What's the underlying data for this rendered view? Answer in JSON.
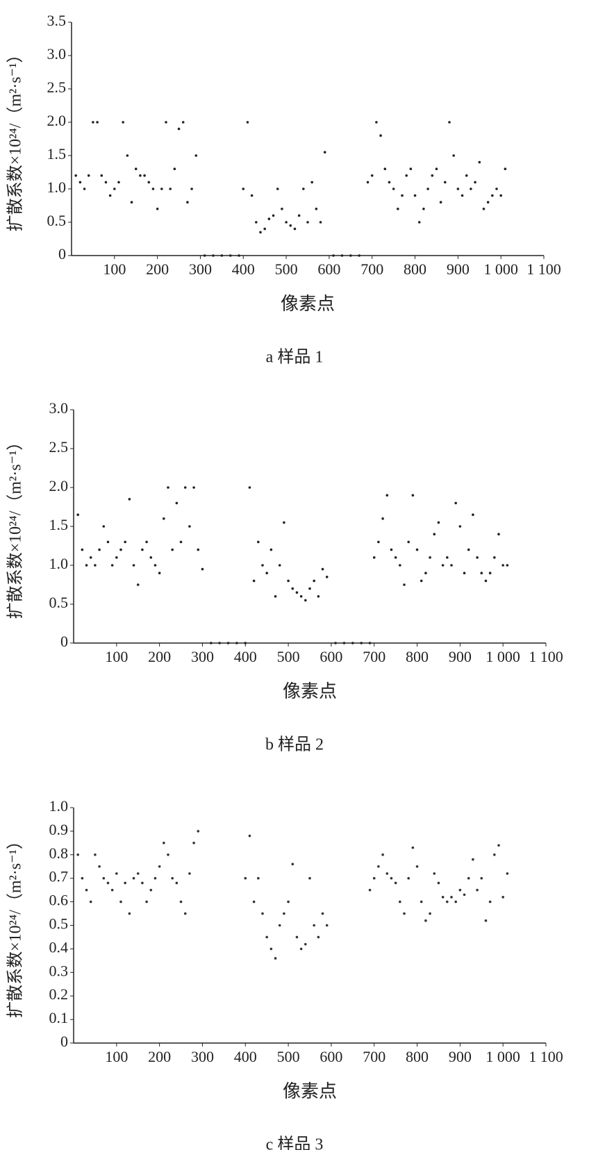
{
  "chart_data": [
    {
      "type": "scatter",
      "caption": "a 样品 1",
      "x_label": "像素点",
      "y_label": "扩散系数×10²⁴/（m²·s⁻¹）",
      "color": "#222222",
      "xlim": [
        0,
        1100
      ],
      "xticks": [
        100,
        200,
        300,
        400,
        500,
        600,
        700,
        800,
        900,
        {
          "value": 1000,
          "label": "1 000"
        },
        {
          "value": 1100,
          "label": "1 100"
        }
      ],
      "ylim": [
        0,
        3.5
      ],
      "yticks": [
        0,
        0.5,
        {
          "value": 1,
          "label": "1.0"
        },
        1.5,
        {
          "value": 2,
          "label": "2.0"
        },
        2.5,
        {
          "value": 3,
          "label": "3.0"
        },
        3.5
      ],
      "x": [
        10,
        20,
        30,
        40,
        50,
        60,
        70,
        80,
        90,
        100,
        110,
        120,
        130,
        140,
        150,
        160,
        170,
        180,
        190,
        200,
        210,
        220,
        230,
        240,
        250,
        260,
        270,
        280,
        290,
        310,
        330,
        350,
        370,
        390,
        400,
        410,
        420,
        430,
        440,
        450,
        460,
        470,
        480,
        490,
        500,
        510,
        520,
        530,
        540,
        550,
        560,
        570,
        580,
        590,
        610,
        630,
        650,
        670,
        690,
        700,
        710,
        720,
        730,
        740,
        750,
        760,
        770,
        780,
        790,
        800,
        810,
        820,
        830,
        840,
        850,
        860,
        870,
        880,
        890,
        900,
        910,
        920,
        930,
        940,
        950,
        960,
        970,
        980,
        990,
        1000,
        1010
      ],
      "values": [
        1.2,
        1.1,
        1.0,
        1.2,
        2.0,
        2.0,
        1.2,
        1.1,
        0.9,
        1.0,
        1.1,
        2.0,
        1.5,
        0.8,
        1.3,
        1.2,
        1.2,
        1.1,
        1.0,
        0.7,
        1.0,
        2.0,
        1.0,
        1.3,
        1.9,
        2.0,
        0.8,
        1.0,
        1.5,
        0,
        0,
        0,
        0,
        0,
        1.0,
        2.0,
        0.9,
        0.5,
        0.35,
        0.4,
        0.55,
        0.6,
        1.0,
        0.7,
        0.5,
        0.45,
        0.4,
        0.6,
        1.0,
        0.5,
        1.1,
        0.7,
        0.5,
        1.55,
        0,
        0,
        0,
        0,
        1.1,
        1.2,
        2.0,
        1.8,
        1.3,
        1.1,
        1.0,
        0.7,
        0.9,
        1.2,
        1.3,
        0.9,
        0.5,
        0.7,
        1.0,
        1.2,
        1.3,
        0.8,
        1.1,
        2.0,
        1.5,
        1.0,
        0.9,
        1.2,
        1.0,
        1.1,
        1.4,
        0.7,
        0.8,
        0.9,
        1.0,
        0.9,
        1.3
      ]
    },
    {
      "type": "scatter",
      "caption": "b 样品 2",
      "x_label": "像素点",
      "y_label": "扩散系数×10²⁴/（m²·s⁻¹）",
      "color": "#222222",
      "xlim": [
        0,
        1100
      ],
      "xticks": [
        100,
        200,
        300,
        400,
        500,
        600,
        700,
        800,
        900,
        {
          "value": 1000,
          "label": "1 000"
        },
        {
          "value": 1100,
          "label": "1 100"
        }
      ],
      "ylim": [
        0,
        3
      ],
      "yticks": [
        0,
        0.5,
        {
          "value": 1,
          "label": "1.0"
        },
        1.5,
        {
          "value": 2,
          "label": "2.0"
        },
        2.5,
        {
          "value": 3,
          "label": "3.0"
        }
      ],
      "x": [
        10,
        20,
        30,
        40,
        50,
        60,
        70,
        80,
        90,
        100,
        110,
        120,
        130,
        140,
        150,
        160,
        170,
        180,
        190,
        200,
        210,
        220,
        230,
        240,
        250,
        260,
        270,
        280,
        290,
        300,
        320,
        340,
        360,
        380,
        400,
        410,
        420,
        430,
        440,
        450,
        460,
        470,
        480,
        490,
        500,
        510,
        520,
        530,
        540,
        550,
        560,
        570,
        580,
        590,
        610,
        630,
        650,
        670,
        690,
        700,
        710,
        720,
        730,
        740,
        750,
        760,
        770,
        780,
        790,
        800,
        810,
        820,
        830,
        840,
        850,
        860,
        870,
        880,
        890,
        900,
        910,
        920,
        930,
        940,
        950,
        960,
        970,
        980,
        990,
        1000,
        1010
      ],
      "values": [
        1.65,
        1.2,
        1.0,
        1.1,
        1.0,
        1.2,
        1.5,
        1.3,
        1.0,
        1.1,
        1.2,
        1.3,
        1.85,
        1.0,
        0.75,
        1.2,
        1.3,
        1.1,
        1.0,
        0.9,
        1.6,
        2.0,
        1.2,
        1.8,
        1.3,
        2.0,
        1.5,
        2.0,
        1.2,
        0.95,
        0,
        0,
        0,
        0,
        0,
        2.0,
        0.8,
        1.3,
        1.0,
        0.9,
        1.2,
        0.6,
        1.0,
        1.55,
        0.8,
        0.7,
        0.65,
        0.6,
        0.55,
        0.7,
        0.8,
        0.6,
        0.95,
        0.85,
        0,
        0,
        0,
        0,
        0,
        1.1,
        1.3,
        1.6,
        1.9,
        1.2,
        1.1,
        1.0,
        0.75,
        1.3,
        1.9,
        1.2,
        0.8,
        0.9,
        1.1,
        1.4,
        1.55,
        1.0,
        1.1,
        1.0,
        1.8,
        1.5,
        0.9,
        1.2,
        1.65,
        1.1,
        0.9,
        0.8,
        0.9,
        1.1,
        1.4,
        1.0,
        1.0
      ]
    },
    {
      "type": "scatter",
      "caption": "c 样品 3",
      "x_label": "像素点",
      "y_label": "扩散系数×10²⁴/（m²·s⁻¹）",
      "color": "#333333",
      "xlim": [
        0,
        1100
      ],
      "xticks": [
        100,
        200,
        300,
        400,
        500,
        600,
        700,
        800,
        900,
        {
          "value": 1000,
          "label": "1 000"
        },
        {
          "value": 1100,
          "label": "1 100"
        }
      ],
      "ylim": [
        0,
        1
      ],
      "yticks": [
        0,
        0.1,
        0.2,
        0.3,
        0.4,
        0.5,
        0.6,
        0.7,
        0.8,
        0.9,
        {
          "value": 1,
          "label": "1.0"
        }
      ],
      "x": [
        10,
        20,
        30,
        40,
        50,
        60,
        70,
        80,
        90,
        100,
        110,
        120,
        130,
        140,
        150,
        160,
        170,
        180,
        190,
        200,
        210,
        220,
        230,
        240,
        250,
        260,
        270,
        280,
        290,
        400,
        410,
        420,
        430,
        440,
        450,
        460,
        470,
        480,
        490,
        500,
        510,
        520,
        530,
        540,
        550,
        560,
        570,
        580,
        590,
        690,
        700,
        710,
        720,
        730,
        740,
        750,
        760,
        770,
        780,
        790,
        800,
        810,
        820,
        830,
        840,
        850,
        860,
        870,
        880,
        890,
        900,
        910,
        920,
        930,
        940,
        950,
        960,
        970,
        980,
        990,
        1000,
        1010
      ],
      "values": [
        0.8,
        0.7,
        0.65,
        0.6,
        0.8,
        0.75,
        0.7,
        0.68,
        0.65,
        0.72,
        0.6,
        0.68,
        0.55,
        0.7,
        0.72,
        0.68,
        0.6,
        0.65,
        0.7,
        0.75,
        0.85,
        0.8,
        0.7,
        0.68,
        0.6,
        0.55,
        0.72,
        0.85,
        0.9,
        0.7,
        0.88,
        0.6,
        0.7,
        0.55,
        0.45,
        0.4,
        0.36,
        0.5,
        0.55,
        0.6,
        0.76,
        0.45,
        0.4,
        0.42,
        0.7,
        0.5,
        0.45,
        0.55,
        0.5,
        0.65,
        0.7,
        0.75,
        0.8,
        0.72,
        0.7,
        0.68,
        0.6,
        0.55,
        0.7,
        0.83,
        0.75,
        0.6,
        0.52,
        0.55,
        0.72,
        0.68,
        0.62,
        0.6,
        0.62,
        0.6,
        0.65,
        0.63,
        0.7,
        0.78,
        0.65,
        0.7,
        0.52,
        0.6,
        0.8,
        0.84,
        0.62,
        0.72
      ]
    }
  ]
}
